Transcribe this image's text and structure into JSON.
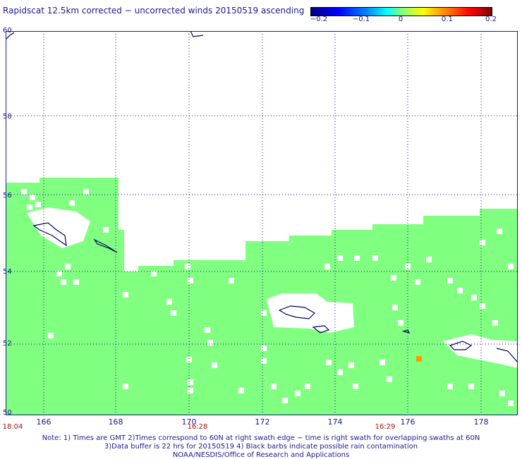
{
  "title": "Rapidscat 12.5km corrected − uncorrected winds 20150519 ascending",
  "colorbar": {
    "labels": [
      "−0.2",
      "−0.1",
      "0",
      "0.1",
      "0.2"
    ],
    "range": [
      -0.2,
      0.2
    ]
  },
  "axes": {
    "lat_labels": [
      "60",
      "58",
      "56",
      "54",
      "52",
      "50"
    ],
    "lon_labels": [
      "166",
      "168",
      "170",
      "172",
      "174",
      "176",
      "178"
    ],
    "time_labels": [
      "18:04",
      "16:28",
      "16:29"
    ]
  },
  "notes": {
    "line1": "Note: 1) Times are GMT 2)Times correspond to 60N at right swath edge − time is right swath for overlapping swaths at 60N",
    "line2": "3)Data buffer is 22 hrs for 20150519 4) Black barbs indicate possible rain contamination",
    "line3": "NOAA/NESDIS/Office of Research and Applications"
  },
  "colors": {
    "swath_zero": "#80ff80",
    "highlight_positive": "#ff9900",
    "coastline": "#000060",
    "grid": "#1a1a8c"
  }
}
